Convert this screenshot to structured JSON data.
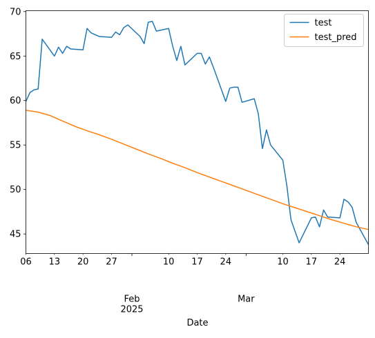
{
  "chart_data": {
    "type": "line",
    "xlabel": "Date",
    "ylabel": "",
    "xlim": [
      "2025-01-06",
      "2025-03-31"
    ],
    "ylim": [
      42.8,
      70.1
    ],
    "grid": false,
    "legend_position": "top-right",
    "y_ticks": [
      45,
      50,
      55,
      60,
      65,
      70
    ],
    "x_minor_ticks": [
      {
        "date": "2025-01-06",
        "label": "06"
      },
      {
        "date": "2025-01-13",
        "label": "13"
      },
      {
        "date": "2025-01-20",
        "label": "20"
      },
      {
        "date": "2025-01-27",
        "label": "27"
      },
      {
        "date": "2025-02-10",
        "label": "10"
      },
      {
        "date": "2025-02-17",
        "label": "17"
      },
      {
        "date": "2025-02-24",
        "label": "24"
      },
      {
        "date": "2025-03-10",
        "label": "10"
      },
      {
        "date": "2025-03-17",
        "label": "17"
      },
      {
        "date": "2025-03-24",
        "label": "24"
      }
    ],
    "x_major_ticks": [
      {
        "date": "2025-02-01",
        "label": "Feb",
        "sublabel": "2025"
      },
      {
        "date": "2025-03-01",
        "label": "Mar",
        "sublabel": ""
      }
    ],
    "series": [
      {
        "name": "test",
        "color": "#1f77b4",
        "points": [
          [
            "2025-01-06",
            59.9
          ],
          [
            "2025-01-07",
            60.9
          ],
          [
            "2025-01-08",
            61.2
          ],
          [
            "2025-01-09",
            61.3
          ],
          [
            "2025-01-10",
            66.9
          ],
          [
            "2025-01-13",
            65.0
          ],
          [
            "2025-01-14",
            66.0
          ],
          [
            "2025-01-15",
            65.3
          ],
          [
            "2025-01-16",
            66.1
          ],
          [
            "2025-01-17",
            65.8
          ],
          [
            "2025-01-20",
            65.7
          ],
          [
            "2025-01-21",
            68.1
          ],
          [
            "2025-01-22",
            67.6
          ],
          [
            "2025-01-23",
            67.4
          ],
          [
            "2025-01-24",
            67.2
          ],
          [
            "2025-01-27",
            67.1
          ],
          [
            "2025-01-28",
            67.7
          ],
          [
            "2025-01-29",
            67.4
          ],
          [
            "2025-01-30",
            68.2
          ],
          [
            "2025-01-31",
            68.5
          ],
          [
            "2025-02-03",
            67.2
          ],
          [
            "2025-02-04",
            66.4
          ],
          [
            "2025-02-05",
            68.8
          ],
          [
            "2025-02-06",
            68.9
          ],
          [
            "2025-02-07",
            67.8
          ],
          [
            "2025-02-10",
            68.1
          ],
          [
            "2025-02-11",
            66.1
          ],
          [
            "2025-02-12",
            64.5
          ],
          [
            "2025-02-13",
            66.1
          ],
          [
            "2025-02-14",
            64.0
          ],
          [
            "2025-02-17",
            65.3
          ],
          [
            "2025-02-18",
            65.3
          ],
          [
            "2025-02-19",
            64.1
          ],
          [
            "2025-02-20",
            64.9
          ],
          [
            "2025-02-21",
            63.7
          ],
          [
            "2025-02-24",
            59.9
          ],
          [
            "2025-02-25",
            61.4
          ],
          [
            "2025-02-26",
            61.5
          ],
          [
            "2025-02-27",
            61.5
          ],
          [
            "2025-02-28",
            59.8
          ],
          [
            "2025-03-03",
            60.2
          ],
          [
            "2025-03-04",
            58.5
          ],
          [
            "2025-03-05",
            54.6
          ],
          [
            "2025-03-06",
            56.7
          ],
          [
            "2025-03-07",
            55.0
          ],
          [
            "2025-03-10",
            53.3
          ],
          [
            "2025-03-11",
            50.4
          ],
          [
            "2025-03-12",
            46.6
          ],
          [
            "2025-03-13",
            45.3
          ],
          [
            "2025-03-14",
            44.0
          ],
          [
            "2025-03-17",
            46.8
          ],
          [
            "2025-03-18",
            46.9
          ],
          [
            "2025-03-19",
            45.8
          ],
          [
            "2025-03-20",
            47.7
          ],
          [
            "2025-03-21",
            46.9
          ],
          [
            "2025-03-24",
            46.8
          ],
          [
            "2025-03-25",
            48.9
          ],
          [
            "2025-03-26",
            48.6
          ],
          [
            "2025-03-27",
            48.0
          ],
          [
            "2025-03-28",
            46.3
          ],
          [
            "2025-03-31",
            43.8
          ]
        ]
      },
      {
        "name": "test_pred",
        "color": "#ff7f0e",
        "points": [
          [
            "2025-01-06",
            58.9
          ],
          [
            "2025-01-09",
            58.7
          ],
          [
            "2025-01-12",
            58.3
          ],
          [
            "2025-01-15",
            57.7
          ],
          [
            "2025-01-18",
            57.1
          ],
          [
            "2025-01-21",
            56.6
          ],
          [
            "2025-01-24",
            56.15
          ],
          [
            "2025-01-27",
            55.65
          ],
          [
            "2025-01-30",
            55.1
          ],
          [
            "2025-02-02",
            54.55
          ],
          [
            "2025-02-05",
            54.0
          ],
          [
            "2025-02-08",
            53.5
          ],
          [
            "2025-02-11",
            52.95
          ],
          [
            "2025-02-14",
            52.45
          ],
          [
            "2025-02-17",
            51.9
          ],
          [
            "2025-02-20",
            51.4
          ],
          [
            "2025-02-23",
            50.9
          ],
          [
            "2025-02-26",
            50.4
          ],
          [
            "2025-03-01",
            49.9
          ],
          [
            "2025-03-04",
            49.4
          ],
          [
            "2025-03-07",
            48.9
          ],
          [
            "2025-03-10",
            48.4
          ],
          [
            "2025-03-13",
            47.95
          ],
          [
            "2025-03-16",
            47.5
          ],
          [
            "2025-03-19",
            47.05
          ],
          [
            "2025-03-22",
            46.6
          ],
          [
            "2025-03-25",
            46.2
          ],
          [
            "2025-03-28",
            45.8
          ],
          [
            "2025-03-31",
            45.5
          ]
        ]
      }
    ]
  }
}
